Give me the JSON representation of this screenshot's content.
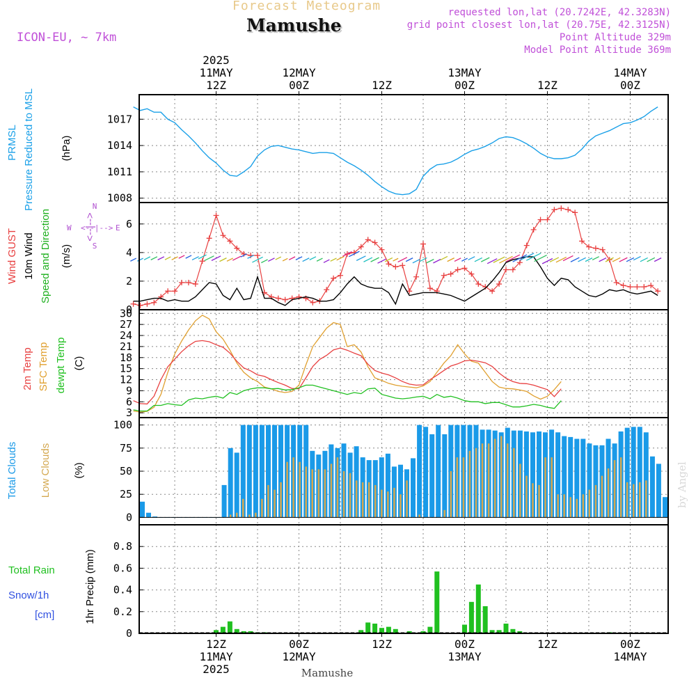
{
  "header": {
    "top_label": "Forecast Meteogram",
    "location": "Mamushe",
    "model": "ICON-EU, ~ 7km",
    "requested": "requested lon,lat (20.7242E, 42.3283N)",
    "grid": "grid point closest lon,lat (20.75E, 42.3125N)",
    "point_alt": "Point Altitude 329m",
    "model_alt": "Model Point Altitude 369m",
    "watermark": "by Angel",
    "footer": "Mamushe"
  },
  "time_axis": {
    "top_year": "2025",
    "labels": [
      {
        "hour": 12,
        "l1": "12Z",
        "l2_top": "11MAY",
        "l2_bottom": "11MAY"
      },
      {
        "hour": 24,
        "l1": "00Z",
        "l2_top": "12MAY",
        "l2_bottom": "12MAY"
      },
      {
        "hour": 36,
        "l1": "12Z",
        "l2_top": "",
        "l2_bottom": ""
      },
      {
        "hour": 48,
        "l1": "00Z",
        "l2_top": "13MAY",
        "l2_bottom": "13MAY"
      },
      {
        "hour": 60,
        "l1": "12Z",
        "l2_top": "",
        "l2_bottom": ""
      },
      {
        "hour": 72,
        "l1": "00Z",
        "l2_top": "14MAY",
        "l2_bottom": "14MAY"
      }
    ],
    "bottom_year": "2025"
  },
  "colors": {
    "pressure": "#1aa0e8",
    "gust": "#e84040",
    "wind": "#000000",
    "t2m": "#e84040",
    "sfc": "#e0a030",
    "dewpt": "#20c020",
    "total_clouds": "#1a9ae8",
    "low_clouds": "#d4a850",
    "rain": "#20c020",
    "snow": "#3050e0"
  },
  "chart_data": [
    {
      "type": "line",
      "panel": "pressure",
      "labels": {
        "l1": "PRMSL",
        "l2": "Pressure Reduced to MSL",
        "unit": "(hPa)"
      },
      "yticks": [
        "1008",
        "1011",
        "1014",
        "1017"
      ],
      "ylim": [
        1007.5,
        1019.8
      ],
      "x_hours": [
        0,
        1,
        2,
        3,
        4,
        5,
        6,
        7,
        8,
        9,
        10,
        11,
        12,
        13,
        14,
        15,
        16,
        17,
        18,
        19,
        20,
        21,
        22,
        23,
        24,
        25,
        26,
        27,
        28,
        29,
        30,
        31,
        32,
        33,
        34,
        35,
        36,
        37,
        38,
        39,
        40,
        41,
        42,
        43,
        44,
        45,
        46,
        47,
        48,
        49,
        50,
        51,
        52,
        53,
        54,
        55,
        56,
        57,
        58,
        59,
        60,
        61,
        62,
        63,
        64,
        65,
        66,
        67,
        68,
        69,
        70,
        71,
        72,
        73,
        74,
        75,
        76
      ],
      "values": [
        1018.4,
        1018.0,
        1018.2,
        1017.8,
        1017.8,
        1017.0,
        1016.6,
        1015.8,
        1015.1,
        1014.3,
        1013.4,
        1012.6,
        1012.0,
        1011.2,
        1010.6,
        1010.5,
        1011.0,
        1011.6,
        1012.8,
        1013.5,
        1013.9,
        1014.0,
        1013.8,
        1013.6,
        1013.5,
        1013.3,
        1013.1,
        1013.2,
        1013.2,
        1013.1,
        1012.6,
        1012.1,
        1011.7,
        1011.2,
        1010.6,
        1009.9,
        1009.3,
        1008.8,
        1008.5,
        1008.4,
        1008.5,
        1009.0,
        1010.5,
        1011.3,
        1011.8,
        1011.9,
        1012.1,
        1012.5,
        1013.0,
        1013.4,
        1013.6,
        1013.9,
        1014.3,
        1014.8,
        1015.0,
        1014.9,
        1014.6,
        1014.2,
        1013.7,
        1013.1,
        1012.7,
        1012.5,
        1012.5,
        1012.6,
        1012.9,
        1013.6,
        1014.5,
        1015.1,
        1015.4,
        1015.7,
        1016.1,
        1016.5,
        1016.6,
        1016.9,
        1017.3,
        1017.9,
        1018.4
      ]
    },
    {
      "type": "line",
      "panel": "wind",
      "labels": {
        "l1": "Wind GUST",
        "l2": "10m Wind",
        "l3": "Speed and Direction",
        "unit": "(m/s)"
      },
      "compass": {
        "n": "N",
        "s": "S",
        "w": "W",
        "e": "E",
        "sep": "<--|-->"
      },
      "yticks": [
        "0",
        "2",
        "4",
        "6"
      ],
      "ylim": [
        0,
        7.5
      ],
      "x_hours": [
        0,
        1,
        2,
        3,
        4,
        5,
        6,
        7,
        8,
        9,
        10,
        11,
        12,
        13,
        14,
        15,
        16,
        17,
        18,
        19,
        20,
        21,
        22,
        23,
        24,
        25,
        26,
        27,
        28,
        29,
        30,
        31,
        32,
        33,
        34,
        35,
        36,
        37,
        38,
        39,
        40,
        41,
        42,
        43,
        44,
        45,
        46,
        47,
        48,
        49,
        50,
        51,
        52,
        53,
        54,
        55,
        56,
        57,
        58,
        59,
        60,
        61,
        62,
        63,
        64,
        65,
        66,
        67,
        68,
        69,
        70,
        71,
        72,
        73,
        74,
        75,
        76
      ],
      "series": [
        {
          "name": "Wind GUST",
          "values": [
            0.4,
            0.3,
            0.4,
            0.5,
            0.9,
            1.3,
            1.3,
            1.9,
            1.9,
            1.8,
            3.4,
            5.0,
            6.6,
            5.2,
            4.8,
            4.3,
            3.9,
            3.8,
            3.8,
            1.2,
            0.9,
            0.8,
            0.7,
            0.8,
            0.9,
            0.8,
            0.5,
            0.6,
            1.4,
            2.2,
            2.4,
            3.9,
            4.0,
            4.4,
            4.9,
            4.7,
            4.2,
            3.2,
            3.0,
            3.1,
            1.3,
            2.3,
            4.6,
            1.5,
            1.3,
            2.4,
            2.5,
            2.8,
            2.9,
            2.5,
            1.8,
            1.6,
            1.3,
            1.8,
            2.8,
            2.8,
            3.3,
            4.5,
            5.6,
            6.3,
            6.3,
            7.0,
            7.1,
            7.0,
            6.8,
            4.8,
            4.4,
            4.3,
            4.2,
            3.5,
            1.9,
            1.7,
            1.6,
            1.6,
            1.6,
            1.7,
            1.3
          ]
        },
        {
          "name": "10m Wind",
          "values": [
            0.6,
            0.6,
            0.7,
            0.8,
            0.8,
            0.6,
            0.7,
            0.6,
            0.6,
            0.9,
            1.4,
            1.9,
            1.8,
            1.0,
            0.7,
            1.5,
            0.7,
            0.8,
            2.3,
            0.8,
            0.8,
            0.5,
            0.3,
            0.7,
            0.8,
            0.9,
            0.8,
            0.6,
            0.6,
            0.7,
            1.2,
            1.8,
            2.3,
            1.8,
            1.6,
            1.5,
            1.5,
            1.2,
            0.4,
            1.8,
            1.0,
            1.1,
            1.2,
            1.2,
            1.2,
            1.1,
            1.0,
            0.8,
            0.6,
            0.9,
            1.2,
            1.5,
            2.0,
            2.6,
            3.3,
            3.5,
            3.6,
            3.7,
            3.7,
            3.0,
            2.2,
            1.7,
            2.2,
            2.1,
            1.6,
            1.3,
            1.0,
            0.9,
            1.1,
            1.4,
            1.3,
            1.4,
            1.2,
            1.1,
            1.2,
            1.3,
            1.0
          ]
        },
        {
          "name": "Direction",
          "values": [
            3.5,
            3.5,
            3.6,
            3.6,
            3.6,
            3.6,
            3.6,
            3.7,
            3.7,
            3.6,
            3.7,
            3.6,
            3.6,
            3.5,
            3.5,
            3.6,
            3.8,
            3.7,
            3.5,
            3.4,
            3.5,
            3.6,
            3.5,
            3.6,
            3.6,
            3.5,
            3.6,
            3.5,
            3.4,
            3.5,
            3.6,
            3.9,
            3.9,
            3.6,
            3.5,
            3.5,
            3.4,
            3.5,
            3.5,
            3.5,
            3.5,
            3.4,
            3.5,
            3.4,
            3.4,
            3.6,
            3.5,
            3.5,
            3.5,
            3.6,
            3.5,
            3.5,
            3.4,
            3.5,
            3.5,
            3.6,
            3.6,
            3.7,
            3.7,
            3.6,
            3.4,
            3.5,
            3.5,
            3.6,
            3.5,
            3.5,
            3.5,
            3.6,
            3.5,
            3.5,
            3.5,
            3.5,
            3.5,
            3.6,
            3.5,
            3.5,
            3.5
          ]
        }
      ]
    },
    {
      "type": "line",
      "panel": "temperature",
      "labels": {
        "l1": "2m Temp",
        "l2": "SFC Temp",
        "l3": "dewpt Temp",
        "unit": "(C)"
      },
      "yticks": [
        "3",
        "6",
        "9",
        "12",
        "15",
        "18",
        "21",
        "24",
        "27",
        "30"
      ],
      "ylim": [
        1.7,
        31
      ],
      "x_hours": [
        0,
        1,
        2,
        3,
        4,
        5,
        6,
        7,
        8,
        9,
        10,
        11,
        12,
        13,
        14,
        15,
        16,
        17,
        18,
        19,
        20,
        21,
        22,
        23,
        24,
        25,
        26,
        27,
        28,
        29,
        30,
        31,
        32,
        33,
        34,
        35,
        36,
        37,
        38,
        39,
        40,
        41,
        42,
        43,
        44,
        45,
        46,
        47,
        48,
        49,
        50,
        51,
        52,
        53,
        54,
        55,
        56,
        57,
        58,
        59,
        60,
        61,
        62,
        63,
        64,
        65,
        66,
        67,
        68,
        69,
        70,
        71,
        72,
        73,
        74,
        75,
        76
      ],
      "series": [
        {
          "name": "2m Temp",
          "values": [
            6.3,
            5.5,
            5.4,
            7.5,
            12.0,
            15.5,
            17.6,
            19.6,
            21.2,
            22.4,
            22.6,
            22.3,
            21.5,
            20.8,
            19.2,
            17.0,
            15.2,
            14.4,
            13.3,
            12.9,
            12.0,
            11.2,
            10.5,
            9.6,
            9.5,
            12.5,
            15.6,
            17.5,
            18.6,
            20.1,
            20.6,
            20.0,
            19.2,
            18.5,
            16.2,
            14.5,
            13.8,
            13.3,
            12.5,
            11.5,
            10.8,
            10.5,
            10.6,
            12.0,
            13.2,
            14.5,
            15.7,
            16.3,
            17.1,
            17.3,
            17.0,
            16.6,
            15.6,
            13.8,
            12.4,
            11.5,
            11.0,
            10.9,
            10.5,
            9.9,
            9.3,
            7.4,
            9.5
          ]
        },
        {
          "name": "SFC Temp",
          "values": [
            3.5,
            3.2,
            3.4,
            4.5,
            8.0,
            14.0,
            19.0,
            22.5,
            25.5,
            28.0,
            29.5,
            28.5,
            25.0,
            23.0,
            20.0,
            16.5,
            14.0,
            12.5,
            11.5,
            10.0,
            9.5,
            8.8,
            8.5,
            8.8,
            10.5,
            16.0,
            21.0,
            23.5,
            26.0,
            27.5,
            27.0,
            21.0,
            21.5,
            19.5,
            15.5,
            12.5,
            11.8,
            11.0,
            10.5,
            10.2,
            10.0,
            9.8,
            10.3,
            11.5,
            14.0,
            16.5,
            18.5,
            21.5,
            19.0,
            17.0,
            16.5,
            14.0,
            11.5,
            10.0,
            9.6,
            9.5,
            9.2,
            8.8,
            7.6,
            6.7,
            7.5,
            9.3,
            11.5
          ]
        },
        {
          "name": "dewpt Temp",
          "values": [
            3.8,
            3.5,
            3.5,
            5.0,
            5.0,
            5.5,
            5.2,
            5.0,
            6.5,
            7.0,
            6.8,
            7.2,
            7.5,
            7.0,
            8.5,
            8.0,
            9.0,
            9.5,
            9.8,
            9.8,
            9.5,
            9.6,
            9.2,
            9.3,
            9.8,
            10.5,
            10.5,
            10.0,
            9.5,
            9.0,
            8.5,
            8.0,
            8.5,
            8.2,
            9.5,
            9.7,
            8.0,
            7.5,
            7.0,
            6.8,
            7.0,
            7.3,
            7.5,
            6.8,
            8.0,
            7.2,
            7.5,
            7.0,
            6.3,
            6.0,
            6.0,
            5.5,
            5.8,
            5.8,
            5.2,
            4.6,
            4.6,
            4.9,
            5.3,
            5.0,
            4.5,
            4.2,
            6.3
          ]
        }
      ]
    },
    {
      "type": "bar",
      "panel": "clouds",
      "labels": {
        "l1": "Total Clouds",
        "l2": "Low Clouds",
        "unit": "(%)"
      },
      "yticks": [
        "0",
        "25",
        "50",
        "75",
        "100"
      ],
      "ylim": [
        -8,
        108
      ],
      "series": [
        {
          "name": "Total Clouds",
          "values": [
            17,
            5,
            1,
            0,
            0,
            0,
            0,
            0,
            0,
            0,
            0,
            0,
            0,
            35,
            75,
            70,
            100,
            100,
            100,
            100,
            100,
            100,
            100,
            100,
            100,
            100,
            100,
            72,
            68,
            72,
            79,
            75,
            80,
            70,
            77,
            65,
            62,
            62,
            65,
            69,
            55,
            57,
            52,
            64,
            100,
            98,
            90,
            100,
            90,
            100,
            100,
            100,
            100,
            100,
            95,
            95,
            94,
            92,
            97,
            94,
            94,
            93,
            92,
            93,
            92,
            95,
            92,
            88,
            87,
            85,
            85,
            80,
            78,
            78,
            85,
            80,
            93,
            97,
            98,
            98,
            92,
            66,
            58,
            22
          ]
        },
        {
          "name": "Low Clouds",
          "values": [
            0,
            0,
            0,
            0,
            0,
            0,
            0,
            0,
            0,
            0,
            0,
            0,
            0,
            0,
            3,
            5,
            20,
            3,
            5,
            20,
            35,
            30,
            38,
            60,
            65,
            60,
            55,
            52,
            52,
            52,
            58,
            65,
            50,
            48,
            40,
            38,
            38,
            35,
            30,
            28,
            32,
            25,
            40,
            0,
            3,
            0,
            0,
            0,
            8,
            50,
            65,
            65,
            72,
            75,
            80,
            80,
            85,
            88,
            80,
            75,
            58,
            45,
            37,
            35,
            65,
            65,
            25,
            25,
            22,
            20,
            25,
            30,
            35,
            45,
            53,
            62,
            65,
            38,
            36,
            38,
            40,
            0,
            0,
            0
          ]
        }
      ]
    },
    {
      "type": "bar",
      "panel": "precipitation",
      "labels": {
        "l1": "Total Rain",
        "l2": "Snow/1h",
        "l3": "[cm]",
        "unit": "1hr Precip (mm)"
      },
      "yticks": [
        "0",
        "0.2",
        "0.4",
        "0.6",
        "0.8"
      ],
      "ylim": [
        0,
        1.0
      ],
      "x_hours": [
        12,
        13,
        14,
        15,
        16,
        17,
        18,
        19,
        20,
        33,
        34,
        35,
        36,
        37,
        38,
        40,
        42,
        43,
        44,
        48,
        49,
        50,
        51,
        52,
        53,
        54,
        55,
        56,
        69
      ],
      "series": [
        {
          "name": "Total Rain",
          "values": [
            0.03,
            0.06,
            0.11,
            0.04,
            0.02,
            0.02,
            0.01,
            0.01,
            0.005,
            0.03,
            0.1,
            0.09,
            0.05,
            0.06,
            0.04,
            0.02,
            0.02,
            0.06,
            0.57,
            0.08,
            0.29,
            0.45,
            0.25,
            0.03,
            0.03,
            0.09,
            0.04,
            0.02,
            0.01
          ]
        }
      ]
    }
  ]
}
